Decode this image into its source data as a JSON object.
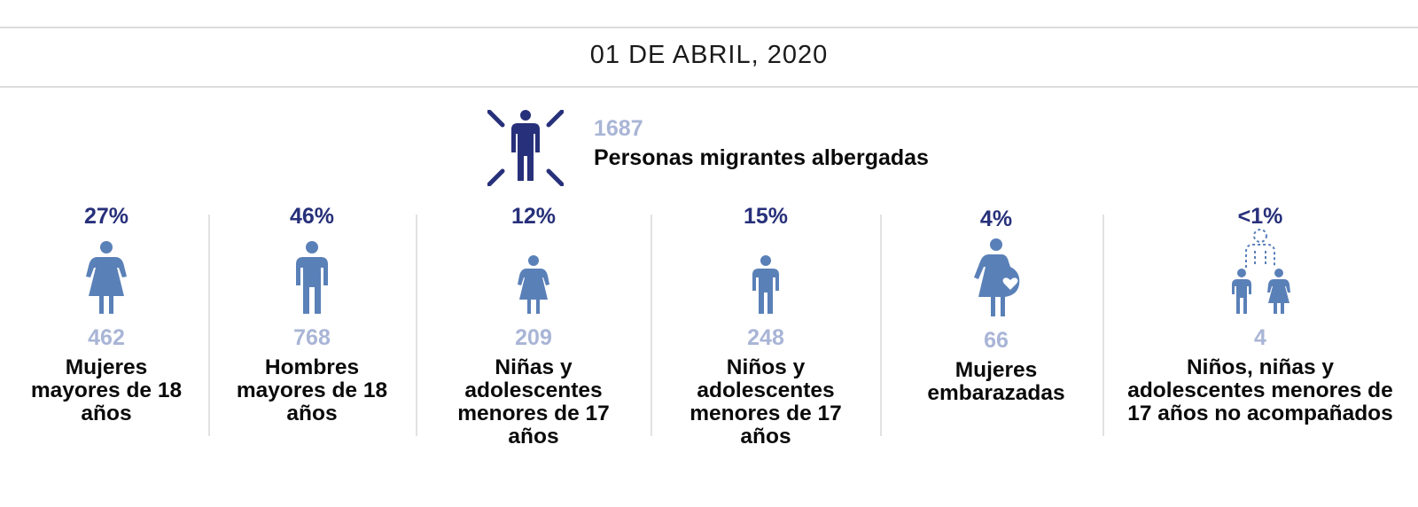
{
  "header": {
    "date": "01 DE ABRIL, 2020"
  },
  "total": {
    "count": "1687",
    "label": "Personas migrantes albergadas",
    "icon": "person-highlight-icon"
  },
  "colors": {
    "dark_blue": "#27307a",
    "icon_blue": "#5a80b8",
    "light_blue": "#a9b5d6"
  },
  "categories": [
    {
      "percent": "27%",
      "count": "462",
      "label": "Mujeres mayores de 18 años",
      "icon": "woman-icon"
    },
    {
      "percent": "46%",
      "count": "768",
      "label": "Hombres mayores de 18 años",
      "icon": "man-icon"
    },
    {
      "percent": "12%",
      "count": "209",
      "label": "Niñas y adolescentes menores de 17 años",
      "icon": "girl-icon"
    },
    {
      "percent": "15%",
      "count": "248",
      "label": "Niños y adolescentes menores de 17 años",
      "icon": "boy-icon"
    },
    {
      "percent": "4%",
      "count": "66",
      "label": "Mujeres embarazadas",
      "icon": "pregnant-woman-icon"
    },
    {
      "percent": "<1%",
      "count": "4",
      "label": "Niños, niñas y adolescentes menores de 17 años no acompañados",
      "icon": "unaccompanied-children-icon"
    }
  ]
}
